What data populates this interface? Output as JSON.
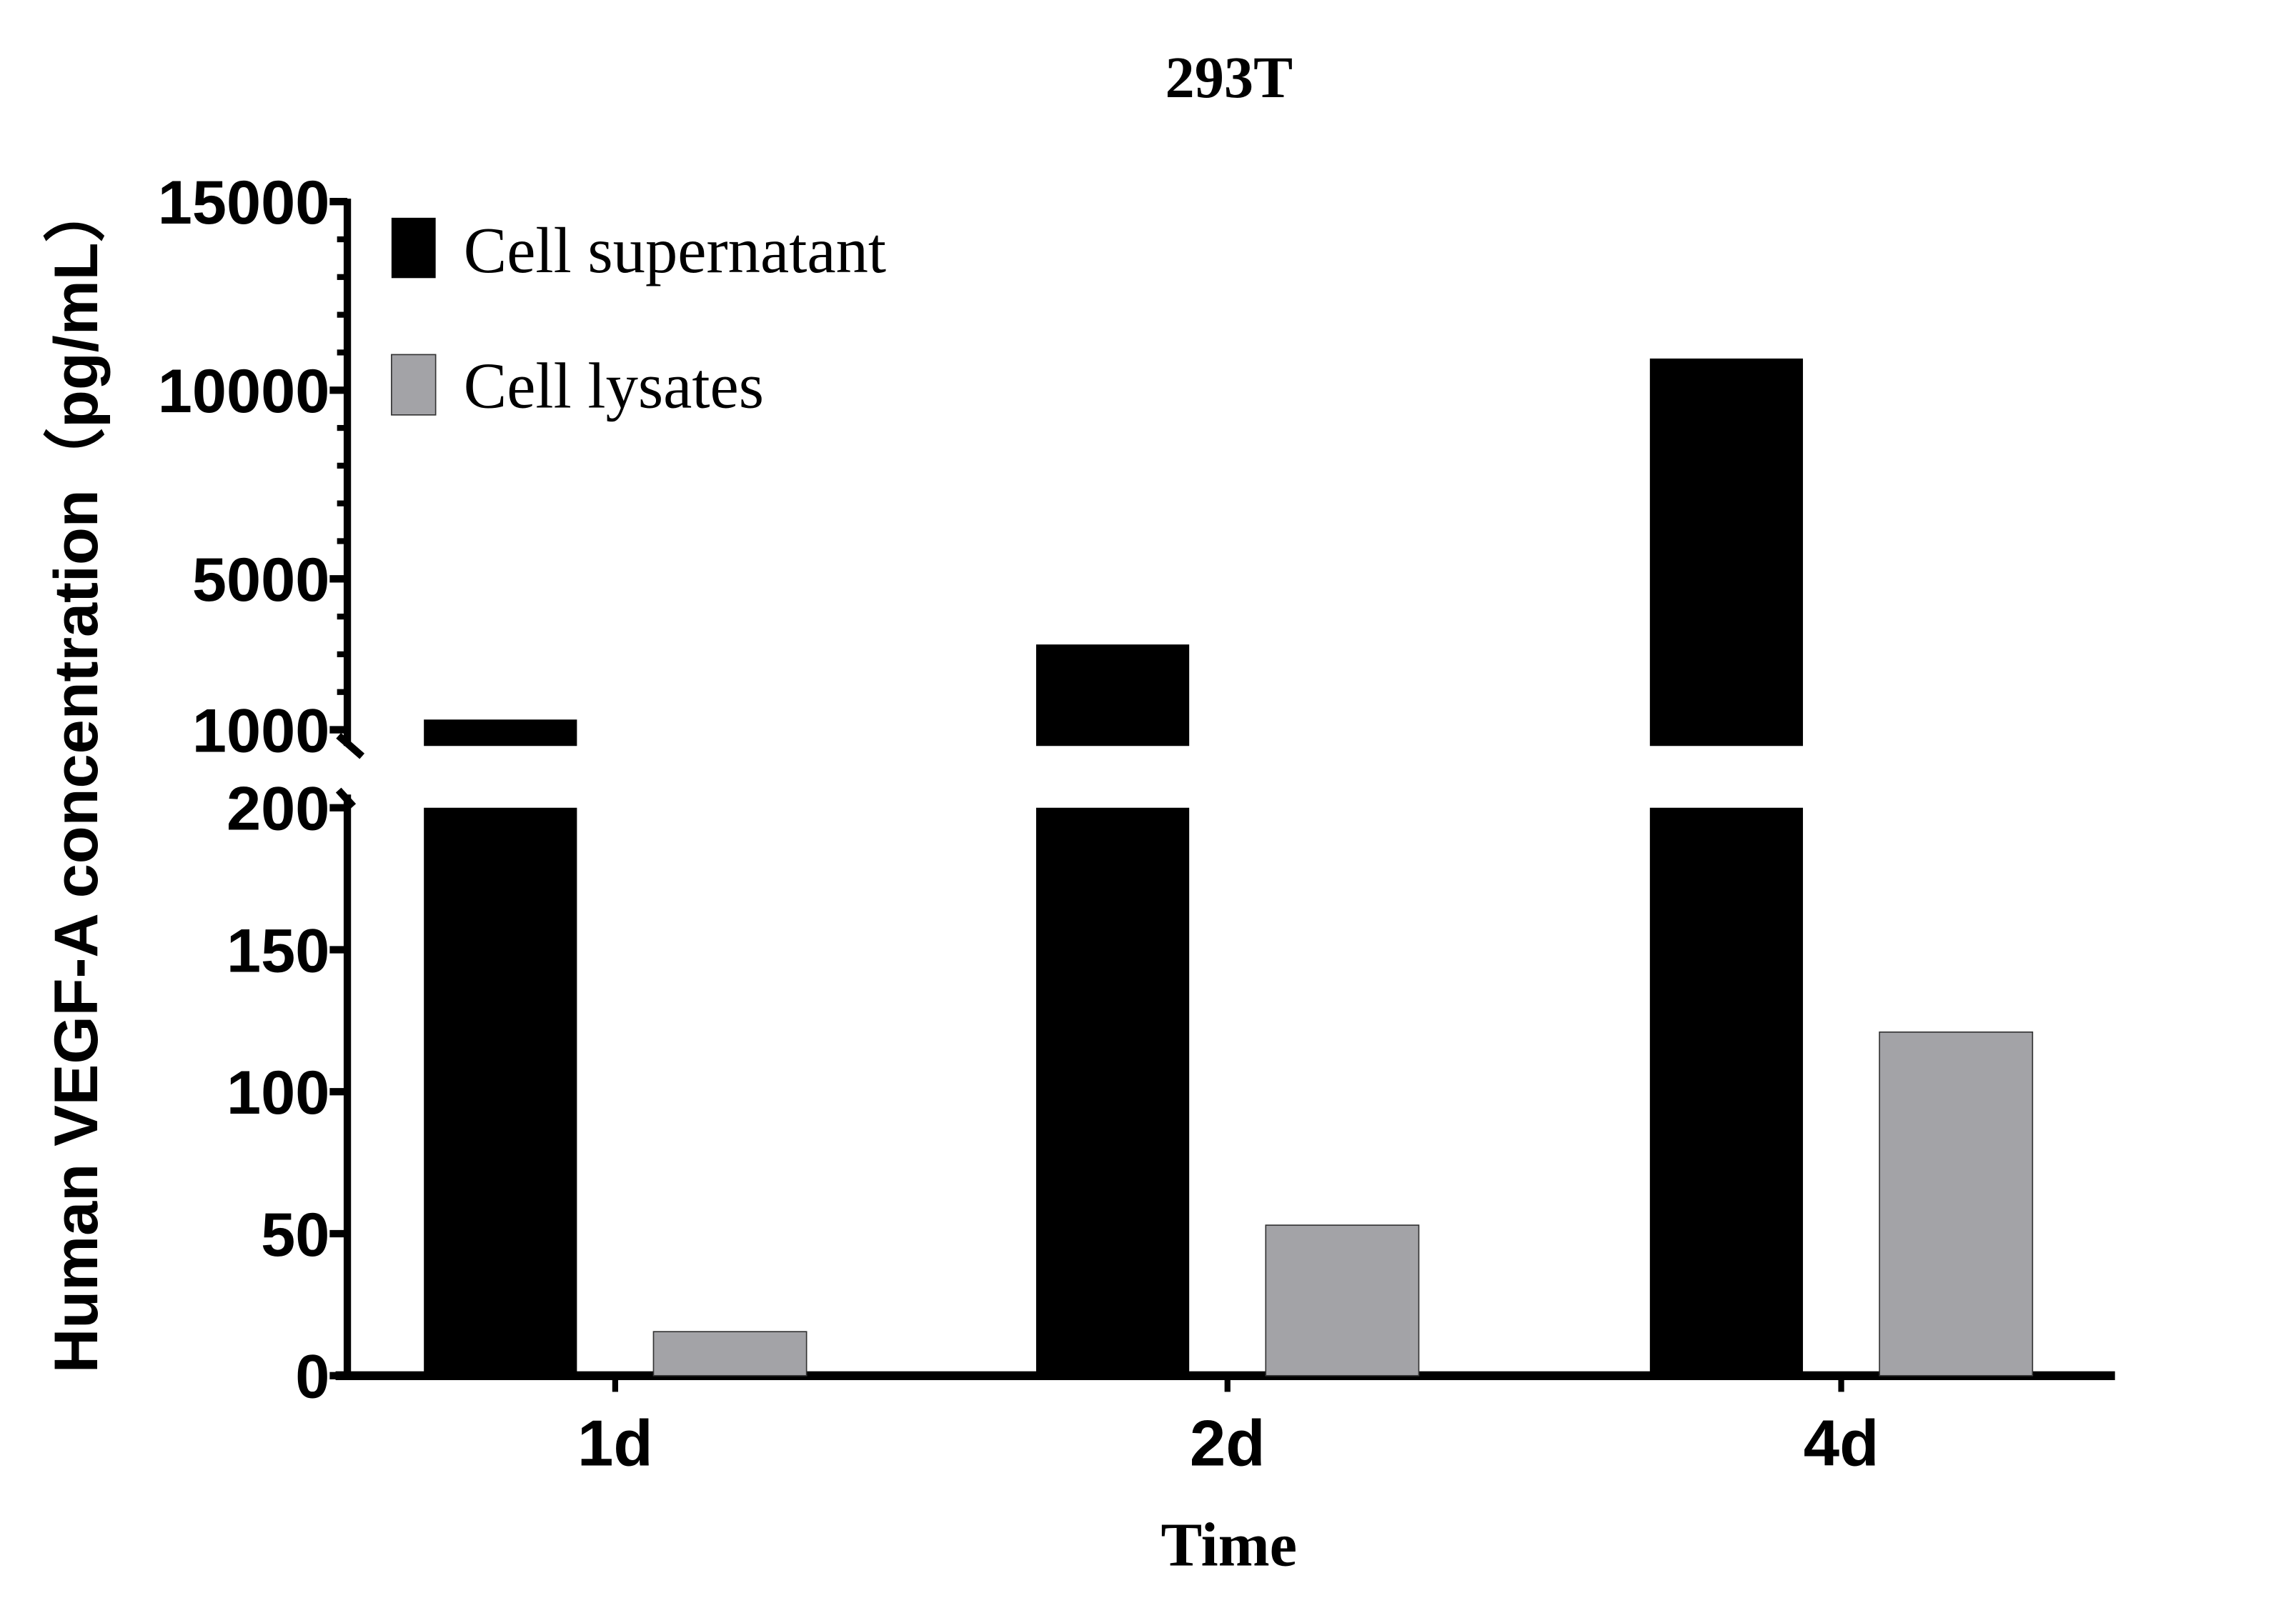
{
  "chart_data": {
    "type": "bar",
    "title": "293T",
    "xlabel": "Time",
    "ylabel": "Human VEGF-A concentration（pg/mL）",
    "categories": [
      "1d",
      "2d",
      "4d"
    ],
    "series": [
      {
        "name": "Cell supernatant",
        "values": [
          1270,
          3260,
          10840
        ],
        "color": "#000000"
      },
      {
        "name": "Cell lysates",
        "values": [
          15.5,
          53,
          121
        ],
        "color": "#a3a3a7"
      }
    ],
    "y_axis_broken": true,
    "y_lower_segment": {
      "range": [
        0,
        200
      ],
      "ticks": [
        0,
        50,
        100,
        150,
        200
      ],
      "tick_labels": [
        "0",
        "50",
        "100",
        "150",
        "200"
      ]
    },
    "y_upper_segment": {
      "range": [
        570,
        15000
      ],
      "ticks": [
        1000,
        5000,
        10000,
        15000
      ],
      "tick_labels": [
        "1000",
        "5000",
        "10000",
        "15000"
      ],
      "minor_tick_step": 1000
    },
    "grid": false,
    "legend": "top-left"
  }
}
